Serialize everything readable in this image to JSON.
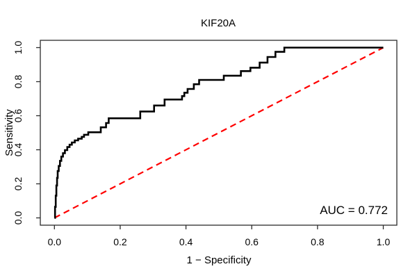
{
  "title": "KIF20A",
  "colors": {
    "curve": "#000000",
    "reference_line": "#ff0000",
    "frame": "#2b2b2b",
    "text": "#000000",
    "background": "#ffffff"
  },
  "chart_data": {
    "type": "line",
    "subtype": "roc-step-curve",
    "title": "KIF20A",
    "xlabel": "1 − Specificity",
    "ylabel": "Sensitivity",
    "xlim": [
      0,
      1
    ],
    "ylim": [
      0,
      1
    ],
    "grid": false,
    "legend": false,
    "x_ticks": [
      "0.0",
      "0.2",
      "0.4",
      "0.6",
      "0.8",
      "1.0"
    ],
    "y_ticks": [
      "0.0",
      "0.2",
      "0.4",
      "0.6",
      "0.8",
      "1.0"
    ],
    "auc": 0.772,
    "annotation": "AUC = 0.772",
    "series": [
      {
        "name": "ROC curve",
        "style": "step",
        "color": "#000000",
        "points": [
          [
            0.0,
            0.0
          ],
          [
            0.002,
            0.065
          ],
          [
            0.004,
            0.13
          ],
          [
            0.006,
            0.19
          ],
          [
            0.008,
            0.235
          ],
          [
            0.01,
            0.275
          ],
          [
            0.013,
            0.305
          ],
          [
            0.017,
            0.335
          ],
          [
            0.021,
            0.36
          ],
          [
            0.026,
            0.38
          ],
          [
            0.032,
            0.398
          ],
          [
            0.039,
            0.416
          ],
          [
            0.046,
            0.43
          ],
          [
            0.053,
            0.443
          ],
          [
            0.062,
            0.455
          ],
          [
            0.072,
            0.465
          ],
          [
            0.083,
            0.476
          ],
          [
            0.09,
            0.488
          ],
          [
            0.103,
            0.503
          ],
          [
            0.141,
            0.532
          ],
          [
            0.157,
            0.557
          ],
          [
            0.165,
            0.585
          ],
          [
            0.261,
            0.625
          ],
          [
            0.303,
            0.66
          ],
          [
            0.335,
            0.695
          ],
          [
            0.388,
            0.715
          ],
          [
            0.395,
            0.735
          ],
          [
            0.405,
            0.757
          ],
          [
            0.424,
            0.785
          ],
          [
            0.44,
            0.81
          ],
          [
            0.515,
            0.835
          ],
          [
            0.567,
            0.862
          ],
          [
            0.596,
            0.882
          ],
          [
            0.624,
            0.912
          ],
          [
            0.648,
            0.945
          ],
          [
            0.672,
            0.975
          ],
          [
            0.699,
            1.0
          ],
          [
            1.0,
            1.0
          ]
        ]
      },
      {
        "name": "Chance diagonal",
        "style": "dashed",
        "color": "#ff0000",
        "points": [
          [
            0,
            0
          ],
          [
            1,
            1
          ]
        ]
      }
    ]
  }
}
